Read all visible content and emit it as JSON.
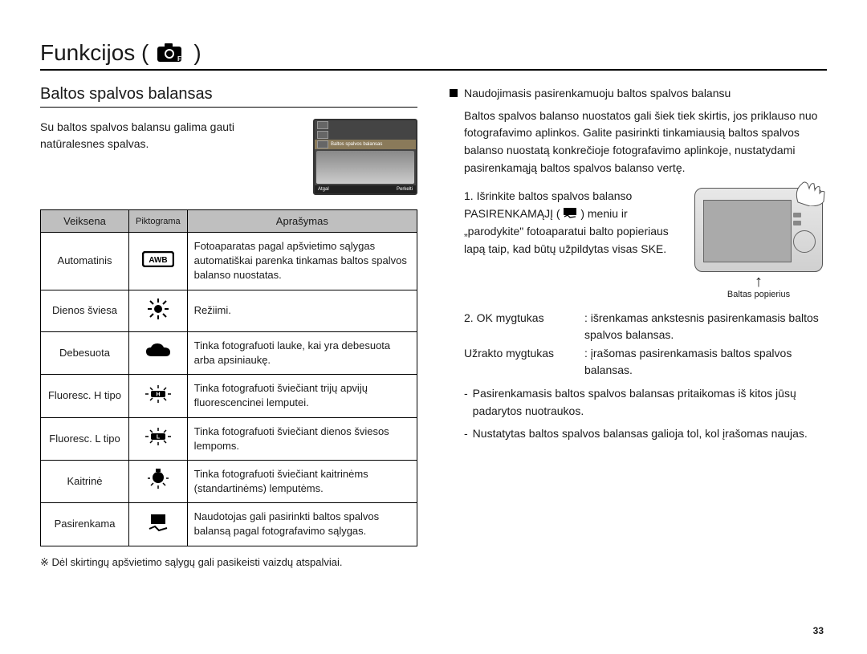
{
  "pageTitle": "Funkcijos (",
  "pageTitleClose": ")",
  "sectionHeading": "Baltos spalvos balansas",
  "introText": "Su baltos spalvos balansu galima gauti natūralesnes spalvas.",
  "lcd": {
    "selectedLabel": "Baltos spalvos balansas",
    "bottomLeft": "Atgal",
    "bottomRight": "Perkelti"
  },
  "table": {
    "headers": {
      "mode": "Veiksena",
      "icon": "Piktograma",
      "desc": "Aprašymas"
    },
    "rows": [
      {
        "mode": "Automatinis",
        "icon": "awb",
        "desc": "Fotoaparatas pagal apšvietimo sąlygas automatiškai parenka tinkamas baltos spalvos balanso nuostatas."
      },
      {
        "mode": "Dienos šviesa",
        "icon": "daylight",
        "desc": "Režiimi."
      },
      {
        "mode": "Debesuota",
        "icon": "cloudy",
        "desc": "Tinka fotografuoti lauke, kai yra debesuota arba apsiniaukę."
      },
      {
        "mode": "Fluoresc. H tipo",
        "icon": "fluo-h",
        "desc": "Tinka fotografuoti šviečiant trijų apvijų fluorescencinei lemputei."
      },
      {
        "mode": "Fluoresc. L tipo",
        "icon": "fluo-l",
        "desc": "Tinka fotografuoti šviečiant dienos šviesos lempoms."
      },
      {
        "mode": "Kaitrinė",
        "icon": "tungsten",
        "desc": "Tinka fotografuoti šviečiant kaitrinėms (standartinėms) lemputėms."
      },
      {
        "mode": "Pasirenkama",
        "icon": "custom",
        "desc": "Naudotojas gali pasirinkti baltos spalvos balansą pagal fotografavimo sąlygas."
      }
    ]
  },
  "footnote": "※ Dėl skirtingų apšvietimo sąlygų gali pasikeisti vaizdų atspalviai.",
  "right": {
    "heading": "Naudojimasis pasirenkamuoju baltos spalvos balansu",
    "para": "Baltos spalvos balanso nuostatos gali šiek tiek skirtis, jos priklauso nuo fotografavimo aplinkos. Galite pasirinkti tinkamiausią baltos spalvos balanso nuostatą konkrečioje fotografavimo aplinkoje, nustatydami pasirenkamąją baltos spalvos balanso vertę.",
    "step1_a": "1. Išrinkite baltos spalvos balanso PASIRENKAMĄJĮ (",
    "step1_b": ") meniu ir „parodykite\" fotoaparatui balto popieriaus lapą taip, kad būtų užpildytas visas SKE.",
    "cameraCaption": "Baltas popierius",
    "step2_label": "2. OK mygtukas",
    "step2_val": ": išrenkamas ankstesnis pasirenkamasis baltos spalvos balansas.",
    "step2b_label": "Užrakto mygtukas",
    "step2b_val": ": įrašomas pasirenkamasis baltos spalvos balansas.",
    "dash1": "Pasirenkamasis baltos spalvos balansas pritaikomas iš kitos jūsų padarytos nuotraukos.",
    "dash2": "Nustatytas baltos spalvos balansas galioja tol, kol įrašomas naujas."
  },
  "pageNumber": "33",
  "colors": {
    "headerBg": "#bfbfbf",
    "border": "#000000",
    "text": "#1a1a1a"
  }
}
